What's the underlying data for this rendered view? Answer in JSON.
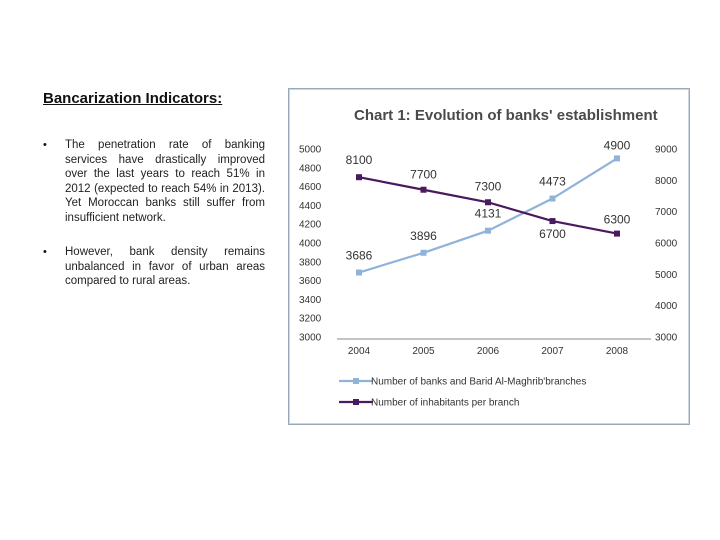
{
  "heading": "Bancarization Indicators:",
  "bullets": [
    "The penetration rate of banking services have drastically improved over the last years to reach 51% in 2012 (expected to reach 54% in 2013). Yet Moroccan banks still suffer from insufficient network.",
    "However, bank density remains unbalanced in favor of urban areas compared to rural areas."
  ],
  "bullet_glyph": "•",
  "chart_data": {
    "type": "line",
    "title": "Chart 1: Evolution of banks' establishment",
    "x": [
      "2004",
      "2005",
      "2006",
      "2007",
      "2008"
    ],
    "y_left": {
      "range": [
        3000,
        5000
      ],
      "ticks": [
        "3000",
        "3200",
        "3400",
        "3600",
        "3800",
        "4000",
        "4200",
        "4400",
        "4600",
        "4800",
        "5000"
      ]
    },
    "y_right": {
      "range": [
        3000,
        9000
      ],
      "ticks": [
        "3000",
        "4000",
        "5000",
        "6000",
        "7000",
        "8000",
        "9000"
      ]
    },
    "series": [
      {
        "name": "Number of banks and Barid Al-Maghrib'branches",
        "axis": "left",
        "values": [
          3686,
          3896,
          4131,
          4473,
          4900
        ],
        "labels": [
          "3686",
          "3896",
          "4131",
          "4473",
          "4900"
        ],
        "color": "#8fb3d9",
        "marker": "square"
      },
      {
        "name": "Number of inhabitants per branch",
        "axis": "right",
        "values": [
          8100,
          7700,
          7300,
          6700,
          6300
        ],
        "labels": [
          "8100",
          "7700",
          "7300",
          "6700",
          "6300"
        ],
        "color": "#4b1a5e",
        "marker": "square"
      }
    ],
    "grid": false,
    "legend_position": "bottom"
  }
}
